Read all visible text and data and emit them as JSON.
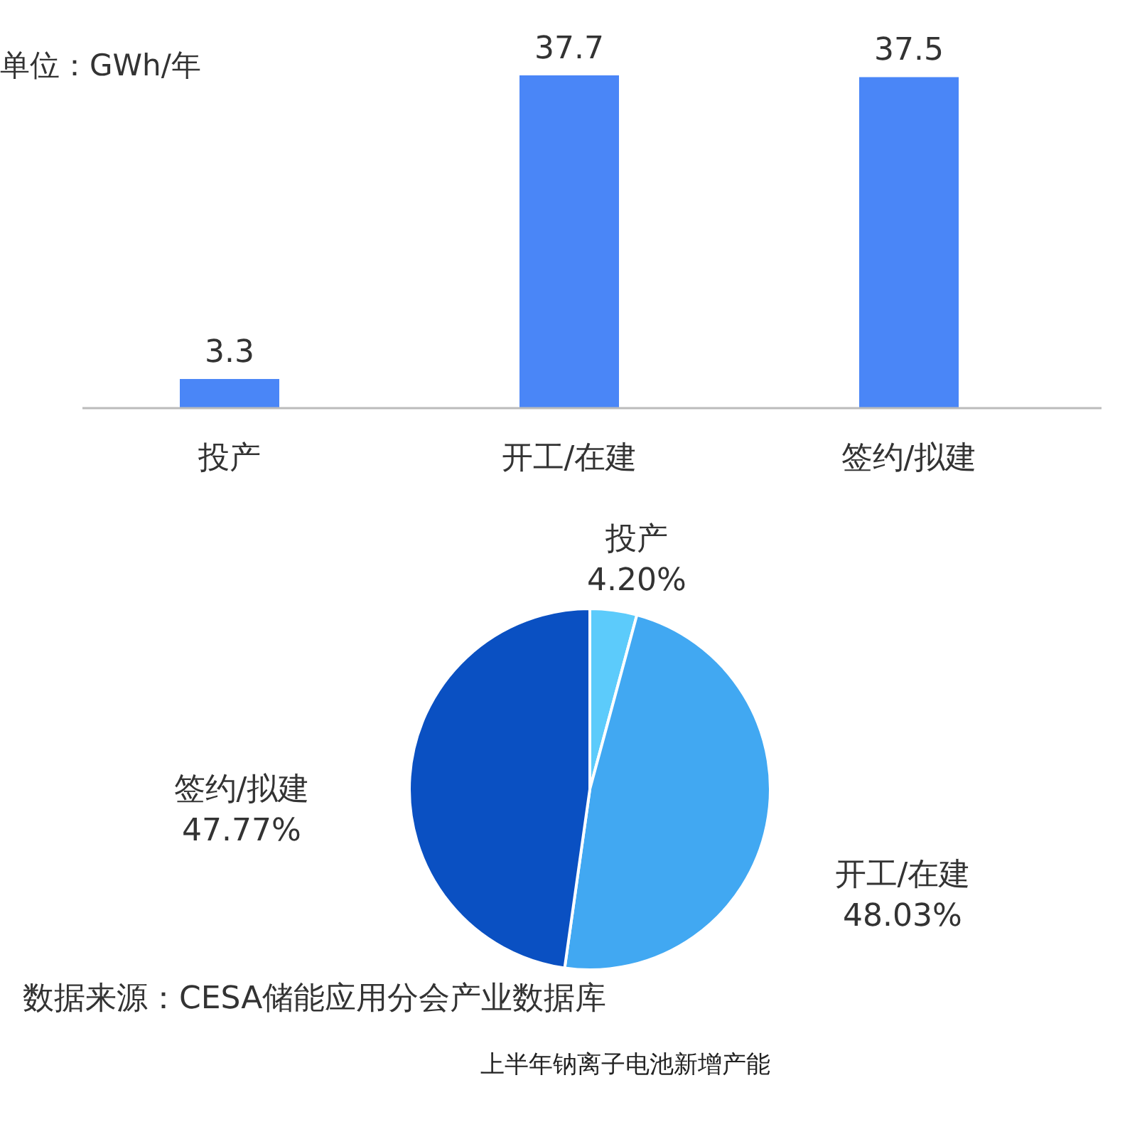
{
  "chart_data": [
    {
      "type": "bar",
      "ylabel": "单位：GWh/年",
      "categories": [
        "投产",
        "开工/在建",
        "签约/拟建"
      ],
      "values": [
        3.3,
        37.7,
        37.5
      ],
      "color": "#4a86f7",
      "data_labels": true
    },
    {
      "type": "pie",
      "categories": [
        "投产",
        "开工/在建",
        "签约/拟建"
      ],
      "values": [
        4.2,
        48.03,
        47.77
      ],
      "value_labels": [
        "4.20%",
        "48.03%",
        "47.77%"
      ],
      "colors": [
        "#5ccbfb",
        "#41a8f2",
        "#0a50c2"
      ],
      "annotations": [
        "数据来源：CESA储能应用分会产业数据库",
        "上半年钠离子电池新增产能"
      ]
    }
  ]
}
